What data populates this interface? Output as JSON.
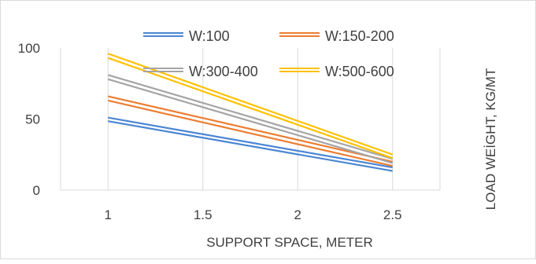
{
  "chart_data": {
    "type": "line",
    "title": "",
    "xlabel": "SUPPORT SPACE, METER",
    "ylabel": "LOAD WEİGHT, KG/MT",
    "x": [
      1,
      2.5
    ],
    "xticks": [
      "1",
      "1.5",
      "2",
      "2.5"
    ],
    "xlim": [
      0.75,
      2.75
    ],
    "yticks": [
      "0",
      "50",
      "100"
    ],
    "ylim": [
      0,
      100
    ],
    "grid": "vertical",
    "legend_position": "top",
    "series": [
      {
        "name": "W:100",
        "color": "#4a86d4",
        "upper": [
          51,
          16
        ],
        "lower": [
          48.5,
          13.5
        ]
      },
      {
        "name": "W:150-200",
        "color": "#ed7d31",
        "upper": [
          66,
          20
        ],
        "lower": [
          63,
          17
        ]
      },
      {
        "name": "W:300-400",
        "color": "#a5a5a5",
        "upper": [
          81,
          22
        ],
        "lower": [
          78,
          19
        ]
      },
      {
        "name": "W:500-600",
        "color": "#ffc000",
        "upper": [
          96,
          25
        ],
        "lower": [
          93,
          22.5
        ]
      }
    ]
  }
}
